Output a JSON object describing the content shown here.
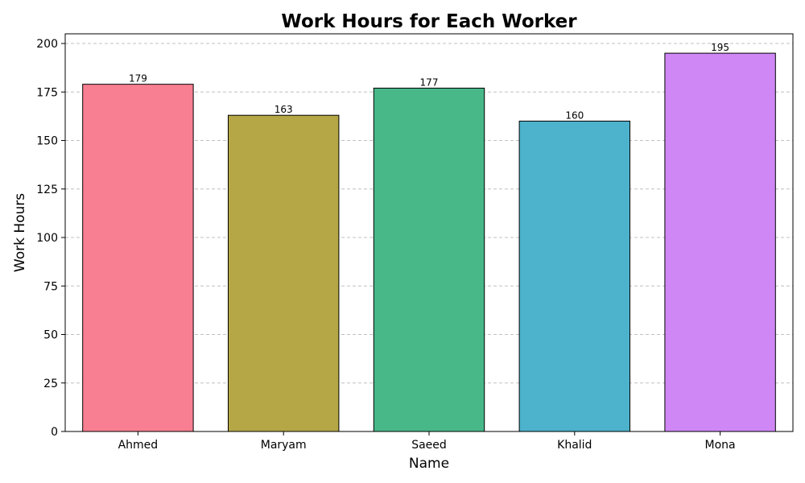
{
  "chart_data": {
    "type": "bar",
    "title": "Work Hours for Each Worker",
    "xlabel": "Name",
    "ylabel": "Work Hours",
    "categories": [
      "Ahmed",
      "Maryam",
      "Saeed",
      "Khalid",
      "Mona"
    ],
    "values": [
      179,
      163,
      177,
      160,
      195
    ],
    "value_labels": [
      "179",
      "163",
      "177",
      "160",
      "195"
    ],
    "colors": [
      "#f77f91",
      "#b5a646",
      "#48b889",
      "#4db2cc",
      "#cf87f5"
    ],
    "ylim": [
      0,
      205
    ],
    "yticks": [
      0,
      25,
      50,
      75,
      100,
      125,
      150,
      175,
      200
    ],
    "ytick_labels": [
      "0",
      "25",
      "50",
      "75",
      "100",
      "125",
      "150",
      "175",
      "200"
    ],
    "grid": "y-dashed",
    "legend": "none"
  }
}
